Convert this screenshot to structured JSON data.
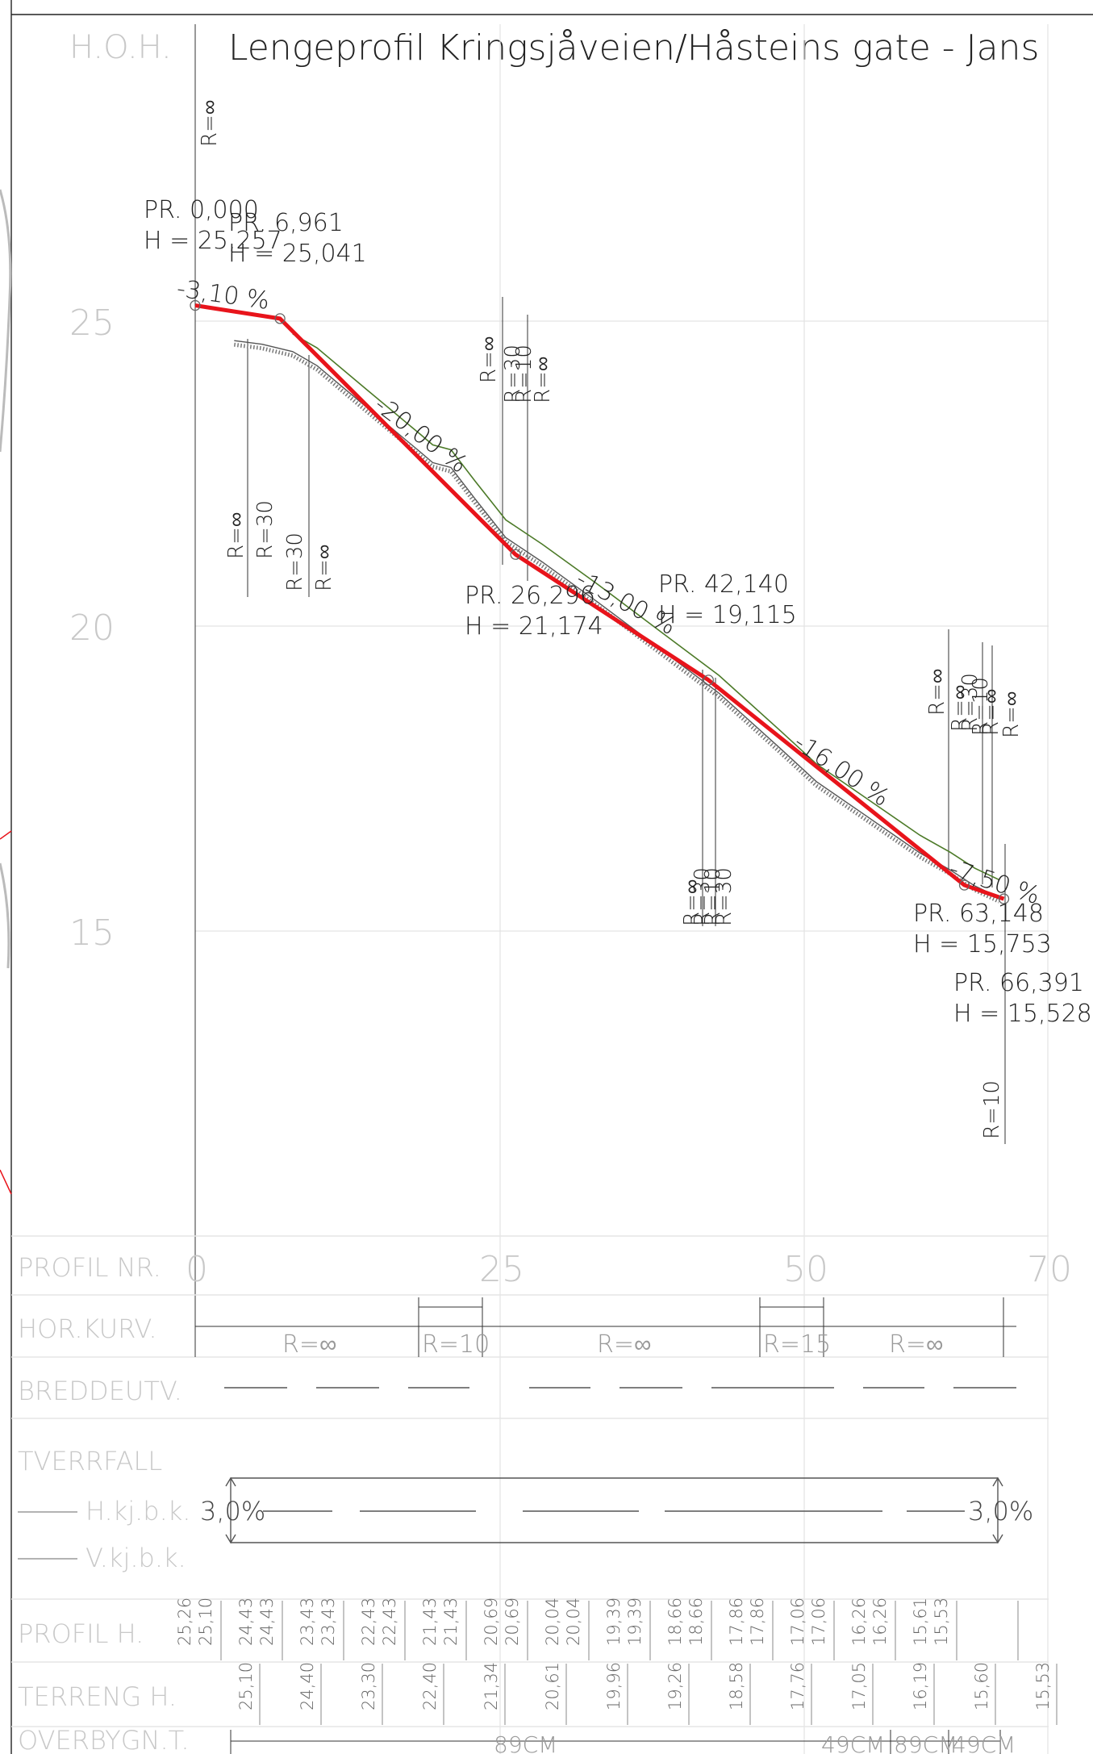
{
  "header": {
    "hoh_label": "H.O.H.",
    "title": "Lengeprofil Kringsjåveien/Håsteins gate - Jans"
  },
  "colors": {
    "profile_line": "#e8141b",
    "terrain_line": "#555555",
    "secondary_line": "#4c7a28",
    "background": "#ffffff",
    "grid_text": "#c8c8c8",
    "ink": "#222222"
  },
  "elevation_ticks": [
    "25",
    "20",
    "15"
  ],
  "chainage_ticks": [
    "0",
    "25",
    "50",
    "70"
  ],
  "vertical_curves": [
    {
      "label": "R=∞"
    },
    {
      "label": "R=∞"
    },
    {
      "label": "R=30"
    },
    {
      "label": "R=30"
    },
    {
      "label": "R=∞"
    },
    {
      "label": "R=∞"
    },
    {
      "label": "R=30"
    },
    {
      "label": "R=10"
    },
    {
      "label": "R=∞"
    },
    {
      "label": "R=∞"
    },
    {
      "label": "R=30"
    },
    {
      "label": "R=10"
    },
    {
      "label": "R=30"
    },
    {
      "label": "R=∞"
    },
    {
      "label": "R=∞"
    },
    {
      "label": "R=30"
    },
    {
      "label": "R=10"
    },
    {
      "label": "R=∞"
    },
    {
      "label": "R=∞"
    },
    {
      "label": "R=10"
    }
  ],
  "station_labels": [
    {
      "pr": "PR. 0,000",
      "h": "H = 25,257"
    },
    {
      "pr": "PR. 6,961",
      "h": "H = 25,041"
    },
    {
      "pr": "PR. 26,296",
      "h": "H = 21,174"
    },
    {
      "pr": "PR. 42,140",
      "h": "H = 19,115"
    },
    {
      "pr": "PR. 63,148",
      "h": "H = 15,753"
    },
    {
      "pr": "PR. 66,391",
      "h": "H = 15,528"
    }
  ],
  "grades": [
    "-3,10 %",
    "-20,00 %",
    "-13,00 %",
    "-16,00 %",
    "-7,50 %"
  ],
  "table": {
    "rows": {
      "profil_nr": "PROFIL NR.",
      "hor_kurv": "HOR.KURV.",
      "breddeutv": "BREDDEUTV.",
      "tverrfall": "TVERRFALL",
      "h_kj": "H.kj.b.k.",
      "v_kj": "V.kj.b.k.",
      "profil_h": "PROFIL H.",
      "terreng_h": "TERRENG H.",
      "overbygn": "OVERBYGN.T."
    },
    "hor_kurv_values": [
      "R=∞",
      "R=10",
      "R=∞",
      "R=15",
      "R=∞"
    ],
    "tverrfall_values": [
      "3,0%",
      "3,0%"
    ],
    "profil_h_values": [
      "25,26",
      "25,10",
      "24,43",
      "24,43",
      "23,43",
      "23,43",
      "22,43",
      "22,43",
      "21,43",
      "21,43",
      "20,69",
      "20,69",
      "20,04",
      "20,04",
      "19,39",
      "19,39",
      "18,66",
      "18,66",
      "17,86",
      "17,86",
      "17,06",
      "17,06",
      "16,26",
      "16,26",
      "15,61",
      "15,53"
    ],
    "terreng_h_values": [
      "25,10",
      "24,40",
      "23,30",
      "22,40",
      "21,34",
      "20,61",
      "19,96",
      "19,26",
      "18,58",
      "17,76",
      "17,05",
      "16,19",
      "15,60",
      "15,53"
    ],
    "overbygn_values": [
      "89CM",
      "49CM",
      "89CM",
      "49CM"
    ]
  },
  "profile": {
    "chainages": [
      0,
      6.961,
      26.296,
      42.14,
      63.148,
      66.391
    ],
    "heights": [
      25.257,
      25.041,
      21.174,
      19.115,
      15.753,
      15.528
    ]
  },
  "terrain": {
    "chainages": [
      3.2,
      5.5,
      8.0,
      10.0,
      14.0,
      18.5,
      19.5,
      21.0,
      23.0,
      25.5,
      28.5,
      33.0,
      38.0,
      43.0,
      48.0,
      51.0,
      55.0,
      59.5,
      62.0,
      64.0,
      66.0
    ],
    "heights": [
      24.68,
      24.62,
      24.5,
      24.27,
      23.6,
      22.85,
      22.68,
      22.6,
      22.08,
      21.45,
      21.05,
      20.4,
      19.65,
      18.9,
      18.0,
      17.45,
      16.9,
      16.28,
      16.0,
      15.74,
      15.55
    ]
  }
}
